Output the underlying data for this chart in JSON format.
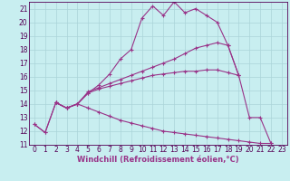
{
  "xlabel": "Windchill (Refroidissement éolien,°C)",
  "background_color": "#c8eef0",
  "grid_color": "#aad4d8",
  "line_color": "#993388",
  "xlim": [
    -0.5,
    23.5
  ],
  "ylim": [
    11,
    21.5
  ],
  "xticks": [
    0,
    1,
    2,
    3,
    4,
    5,
    6,
    7,
    8,
    9,
    10,
    11,
    12,
    13,
    14,
    15,
    16,
    17,
    18,
    19,
    20,
    21,
    22,
    23
  ],
  "yticks": [
    11,
    12,
    13,
    14,
    15,
    16,
    17,
    18,
    19,
    20,
    21
  ],
  "series": [
    {
      "x": [
        0,
        1,
        2,
        3,
        4,
        5,
        6,
        7,
        8,
        9,
        10,
        11,
        12,
        13,
        14,
        15,
        16,
        17,
        18,
        19,
        20,
        21,
        22
      ],
      "y": [
        12.5,
        11.9,
        14.1,
        13.7,
        14.0,
        14.8,
        15.4,
        16.2,
        17.3,
        18.0,
        20.3,
        21.2,
        20.5,
        21.5,
        20.7,
        21.0,
        20.5,
        20.0,
        18.3,
        16.1,
        13.0,
        13.0,
        11.1
      ]
    },
    {
      "x": [
        2,
        3,
        4,
        5,
        6,
        7,
        8,
        9,
        10,
        11,
        12,
        13,
        14,
        15,
        16,
        17,
        18,
        19
      ],
      "y": [
        14.1,
        13.7,
        14.0,
        14.9,
        15.2,
        15.5,
        15.8,
        16.1,
        16.4,
        16.7,
        17.0,
        17.3,
        17.7,
        18.1,
        18.3,
        18.5,
        18.3,
        16.1
      ]
    },
    {
      "x": [
        2,
        3,
        4,
        5,
        6,
        7,
        8,
        9,
        10,
        11,
        12,
        13,
        14,
        15,
        16,
        17,
        18,
        19
      ],
      "y": [
        14.1,
        13.7,
        14.0,
        14.8,
        15.1,
        15.3,
        15.5,
        15.7,
        15.9,
        16.1,
        16.2,
        16.3,
        16.4,
        16.4,
        16.5,
        16.5,
        16.3,
        16.1
      ]
    },
    {
      "x": [
        0,
        1,
        2,
        3,
        4,
        5,
        6,
        7,
        8,
        9,
        10,
        11,
        12,
        13,
        14,
        15,
        16,
        17,
        18,
        19,
        20,
        21,
        22
      ],
      "y": [
        12.5,
        11.9,
        14.1,
        13.7,
        14.0,
        13.7,
        13.4,
        13.1,
        12.8,
        12.6,
        12.4,
        12.2,
        12.0,
        11.9,
        11.8,
        11.7,
        11.6,
        11.5,
        11.4,
        11.3,
        11.2,
        11.1,
        11.1
      ]
    }
  ],
  "xlabel_color": "#993388",
  "xlabel_fontsize": 6.0,
  "tick_fontsize": 5.5,
  "tick_color": "#550055"
}
